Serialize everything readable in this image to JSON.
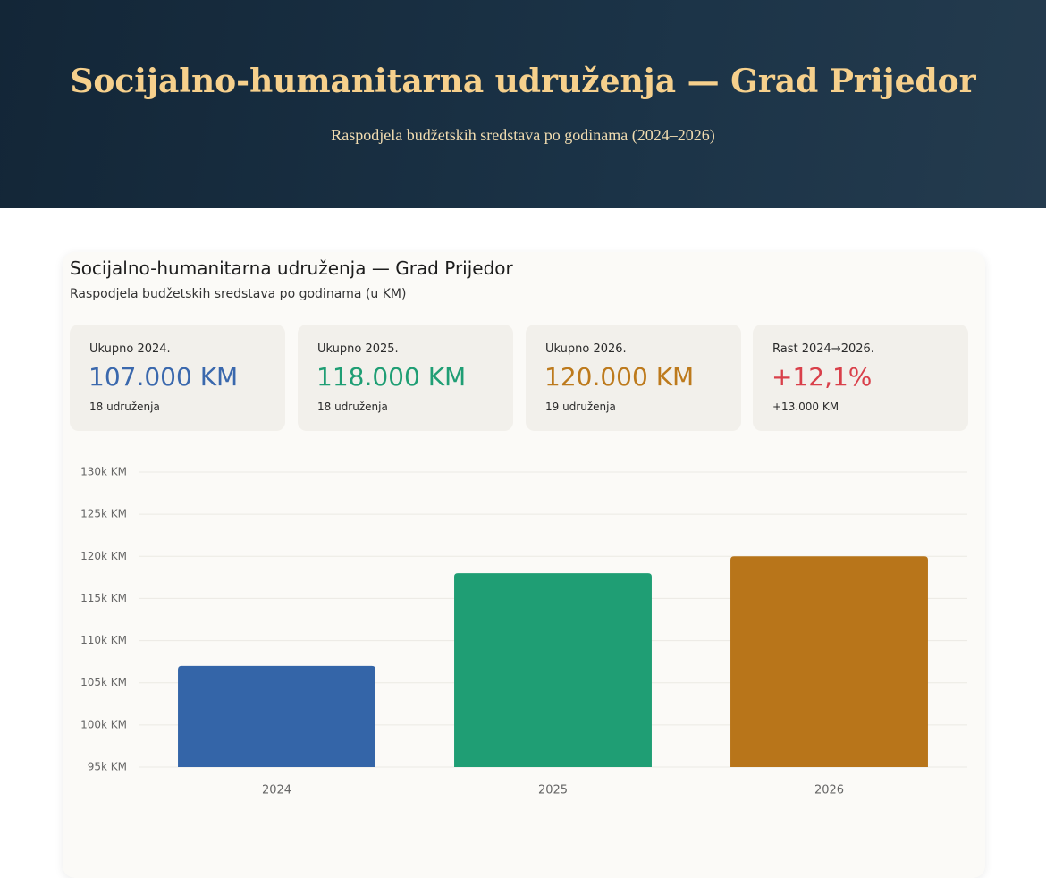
{
  "header": {
    "title": "Socijalno-humanitarna udruženja — Grad Prijedor",
    "subtitle": "Raspodjela budžetskih sredstava po godinama (2024–2026)"
  },
  "card": {
    "title": "Socijalno-humanitarna udruženja — Grad Prijedor",
    "subtitle": "Raspodjela budžetskih sredstava po godinama (u KM)"
  },
  "stats": [
    {
      "label": "Ukupno 2024.",
      "value": "107.000 KM",
      "note": "18 udruženja"
    },
    {
      "label": "Ukupno 2025.",
      "value": "118.000 KM",
      "note": "18 udruženja"
    },
    {
      "label": "Ukupno 2026.",
      "value": "120.000 KM",
      "note": "19 udruženja"
    },
    {
      "label": "Rast 2024→2026.",
      "value": "+12,1%",
      "note": "+13.000 KM"
    }
  ],
  "chart_data": {
    "type": "bar",
    "categories": [
      "2024",
      "2025",
      "2026"
    ],
    "values": [
      107000,
      118000,
      120000
    ],
    "colors": [
      "#3465a8",
      "#1f9e74",
      "#b8751a"
    ],
    "ylim": [
      95000,
      130000
    ],
    "yticks": [
      {
        "value": 95000,
        "label": "95k KM"
      },
      {
        "value": 100000,
        "label": "100k KM"
      },
      {
        "value": 105000,
        "label": "105k KM"
      },
      {
        "value": 110000,
        "label": "110k KM"
      },
      {
        "value": 115000,
        "label": "115k KM"
      },
      {
        "value": 120000,
        "label": "120k KM"
      },
      {
        "value": 125000,
        "label": "125k KM"
      },
      {
        "value": 130000,
        "label": "130k KM"
      }
    ],
    "grid": true
  }
}
